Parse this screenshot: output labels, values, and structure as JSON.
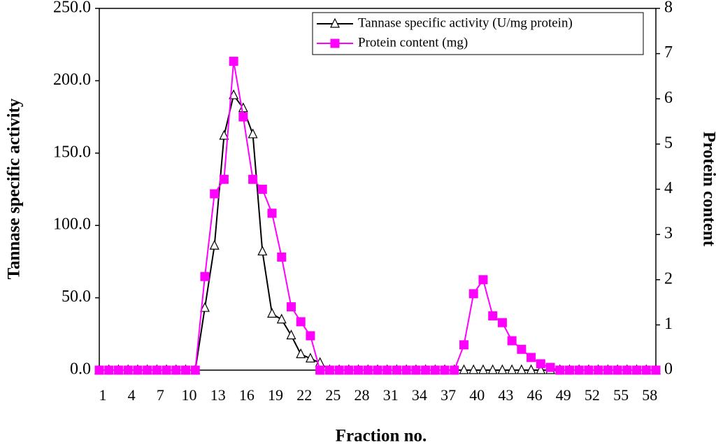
{
  "chart_data": {
    "type": "line",
    "x_label": "Fraction no.",
    "y_label": "Tannase specific activity",
    "y2_label": "Protein content",
    "categories": [
      "1",
      null,
      null,
      "4",
      null,
      null,
      "7",
      null,
      null,
      "10",
      null,
      null,
      "13",
      null,
      null,
      "16",
      null,
      null,
      "19",
      null,
      null,
      "22",
      null,
      null,
      "25",
      null,
      null,
      "28",
      null,
      null,
      "31",
      null,
      null,
      "34",
      null,
      null,
      "37",
      null,
      null,
      "40",
      null,
      null,
      "43",
      null,
      null,
      "46",
      null,
      null,
      "49",
      null,
      null,
      "52",
      null,
      null,
      "55",
      null,
      null,
      "58",
      null
    ],
    "ylim": [
      0,
      250
    ],
    "yticks": [
      {
        "value": 0,
        "label": "0.0"
      },
      {
        "value": 50,
        "label": "50.0"
      },
      {
        "value": 100,
        "label": "100.0"
      },
      {
        "value": 150,
        "label": "150.0"
      },
      {
        "value": 200,
        "label": "200.0"
      },
      {
        "value": 250,
        "label": "250.0"
      }
    ],
    "y2lim": [
      0,
      8
    ],
    "y2ticks": [
      0,
      1,
      2,
      3,
      4,
      5,
      6,
      7,
      8
    ],
    "legend": "top-right",
    "series": [
      {
        "name": "Tannase specific activity (U/mg protein)",
        "color": "#000000",
        "marker": "triangle",
        "values": [
          0,
          0,
          0,
          0,
          0,
          0,
          0,
          0,
          0,
          0,
          0,
          43,
          86,
          162,
          190,
          181,
          163,
          82,
          39,
          35,
          24,
          11,
          8,
          5,
          0,
          0,
          0,
          0,
          0,
          0,
          0,
          0,
          0,
          0,
          0,
          0,
          0,
          0,
          0,
          0,
          0,
          0,
          0,
          0,
          0,
          0,
          0,
          0,
          0,
          0,
          0,
          0,
          0,
          0,
          0,
          0,
          0,
          0,
          0
        ]
      },
      {
        "name": "Protein content (mg)",
        "color": "#ff00ff",
        "marker": "square",
        "axis": "y2",
        "values": [
          0,
          0,
          0,
          0,
          0,
          0,
          0,
          0,
          0,
          0,
          0,
          2.07,
          3.9,
          4.22,
          6.83,
          5.6,
          4.22,
          4.0,
          3.47,
          2.5,
          1.4,
          1.07,
          0.76,
          0,
          0,
          0,
          0,
          0,
          0,
          0,
          0,
          0,
          0,
          0,
          0,
          0,
          0,
          0,
          0.56,
          1.69,
          2.0,
          1.2,
          1.05,
          0.65,
          0.46,
          0.28,
          0.14,
          0.06,
          0,
          0,
          0,
          0,
          0,
          0,
          0,
          0,
          0,
          0,
          0
        ]
      }
    ]
  }
}
